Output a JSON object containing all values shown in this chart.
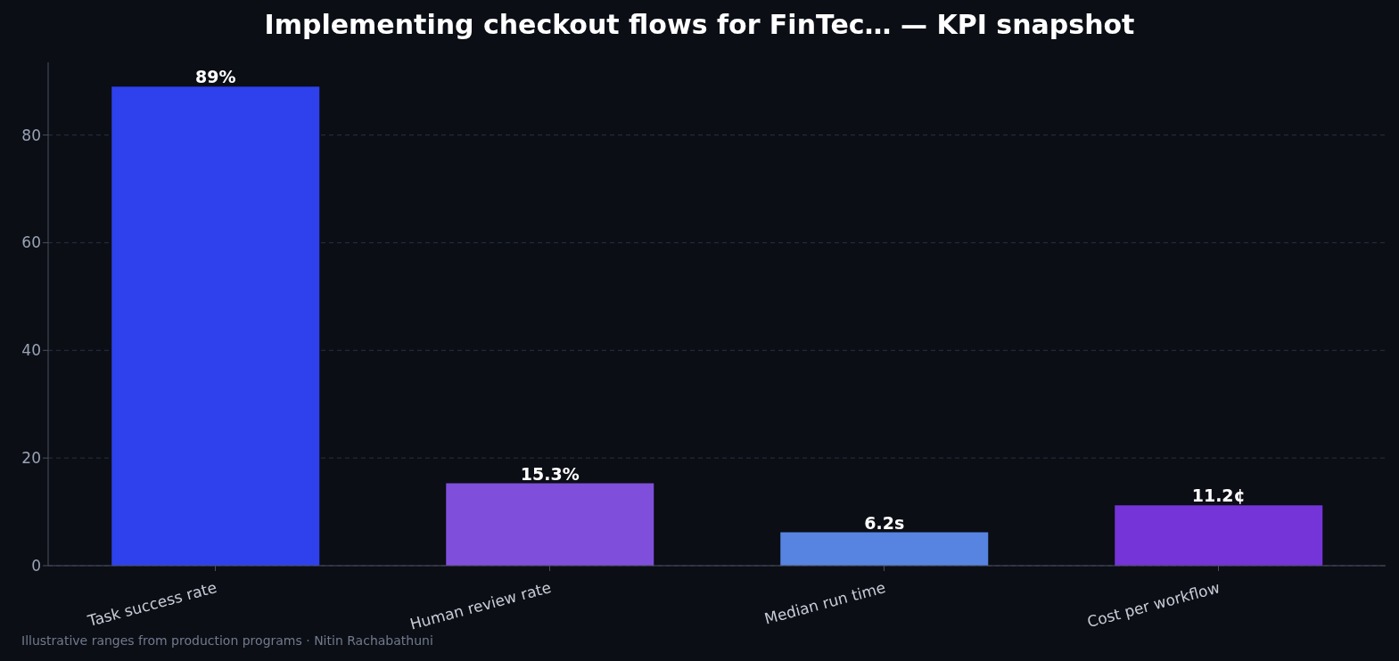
{
  "chart_data": {
    "type": "bar",
    "title": "Implementing checkout flows for FinTec… — KPI snapshot",
    "categories": [
      "Task success rate",
      "Human review rate",
      "Median run time",
      "Cost per workflow"
    ],
    "values": [
      89,
      15.3,
      6.2,
      11.2
    ],
    "colors": [
      "#2e41ec",
      "#7f4fdc",
      "#5784e0",
      "#7434d8"
    ],
    "value_labels": [
      "89%",
      "15.3%",
      "6.2s",
      "11.2¢"
    ],
    "ylim": [
      0,
      93.5
    ],
    "yticks": [
      0,
      20,
      40,
      60,
      80
    ],
    "grid": "y",
    "annotations": [
      "Illustrative ranges from production programs · Nitin Rachabathuni"
    ]
  }
}
